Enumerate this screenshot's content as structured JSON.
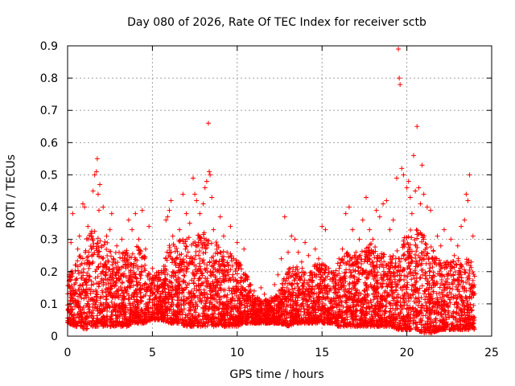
{
  "chart_data": {
    "type": "scatter",
    "title": "Day 080 of 2026, Rate Of TEC Index for receiver sctb",
    "xlabel": "GPS time / hours",
    "ylabel": "ROTI / TECUs",
    "xlim": [
      0,
      25
    ],
    "ylim": [
      0,
      0.9
    ],
    "x_ticks": [
      0,
      5,
      10,
      15,
      20,
      25
    ],
    "x_tick_labels": [
      "0",
      "5",
      "10",
      "15",
      "20",
      "25"
    ],
    "y_ticks": [
      0,
      0.1,
      0.2,
      0.3,
      0.4,
      0.5,
      0.6,
      0.7,
      0.8,
      0.9
    ],
    "y_tick_labels": [
      "0",
      "0.1",
      "0.2",
      "0.3",
      "0.4",
      "0.5",
      "0.6",
      "0.7",
      "0.8",
      "0.9"
    ],
    "grid": true,
    "marker": "+",
    "marker_color": "#ff0000",
    "series": [
      {
        "name": "ROTI",
        "color": "#ff0000",
        "points": [
          [
            0.05,
            0.08
          ],
          [
            0.1,
            0.19
          ],
          [
            0.2,
            0.29
          ],
          [
            0.3,
            0.38
          ],
          [
            0.4,
            0.13
          ],
          [
            0.5,
            0.22
          ],
          [
            0.6,
            0.27
          ],
          [
            0.7,
            0.31
          ],
          [
            0.8,
            0.18
          ],
          [
            0.9,
            0.41
          ],
          [
            1.0,
            0.4
          ],
          [
            1.1,
            0.12
          ],
          [
            1.2,
            0.34
          ],
          [
            1.3,
            0.09
          ],
          [
            1.4,
            0.27
          ],
          [
            1.5,
            0.45
          ],
          [
            1.6,
            0.5
          ],
          [
            1.7,
            0.51
          ],
          [
            1.75,
            0.55
          ],
          [
            1.8,
            0.44
          ],
          [
            1.85,
            0.39
          ],
          [
            1.9,
            0.47
          ],
          [
            2.0,
            0.28
          ],
          [
            2.1,
            0.4
          ],
          [
            2.2,
            0.22
          ],
          [
            2.3,
            0.31
          ],
          [
            2.4,
            0.15
          ],
          [
            2.5,
            0.33
          ],
          [
            2.6,
            0.38
          ],
          [
            2.7,
            0.24
          ],
          [
            2.8,
            0.19
          ],
          [
            2.9,
            0.28
          ],
          [
            3.0,
            0.13
          ],
          [
            3.2,
            0.3
          ],
          [
            3.4,
            0.25
          ],
          [
            3.6,
            0.36
          ],
          [
            3.8,
            0.33
          ],
          [
            4.0,
            0.38
          ],
          [
            4.2,
            0.3
          ],
          [
            4.4,
            0.39
          ],
          [
            4.6,
            0.27
          ],
          [
            4.8,
            0.34
          ],
          [
            5.0,
            0.21
          ],
          [
            5.2,
            0.12
          ],
          [
            5.4,
            0.19
          ],
          [
            5.6,
            0.16
          ],
          [
            5.8,
            0.36
          ],
          [
            5.9,
            0.37
          ],
          [
            6.0,
            0.39
          ],
          [
            6.1,
            0.42
          ],
          [
            6.2,
            0.31
          ],
          [
            6.4,
            0.24
          ],
          [
            6.6,
            0.33
          ],
          [
            6.8,
            0.44
          ],
          [
            7.0,
            0.38
          ],
          [
            7.2,
            0.35
          ],
          [
            7.4,
            0.49
          ],
          [
            7.5,
            0.44
          ],
          [
            7.6,
            0.42
          ],
          [
            7.8,
            0.38
          ],
          [
            8.0,
            0.41
          ],
          [
            8.1,
            0.46
          ],
          [
            8.2,
            0.48
          ],
          [
            8.3,
            0.66
          ],
          [
            8.35,
            0.51
          ],
          [
            8.4,
            0.5
          ],
          [
            8.5,
            0.43
          ],
          [
            8.6,
            0.33
          ],
          [
            8.8,
            0.28
          ],
          [
            9.0,
            0.37
          ],
          [
            9.2,
            0.31
          ],
          [
            9.4,
            0.26
          ],
          [
            9.6,
            0.34
          ],
          [
            9.8,
            0.24
          ],
          [
            10.0,
            0.29
          ],
          [
            10.2,
            0.22
          ],
          [
            10.4,
            0.27
          ],
          [
            10.6,
            0.18
          ],
          [
            10.8,
            0.16
          ],
          [
            11.0,
            0.14
          ],
          [
            11.2,
            0.12
          ],
          [
            11.4,
            0.15
          ],
          [
            11.6,
            0.13
          ],
          [
            11.8,
            0.11
          ],
          [
            12.0,
            0.12
          ],
          [
            12.2,
            0.16
          ],
          [
            12.4,
            0.19
          ],
          [
            12.6,
            0.24
          ],
          [
            12.8,
            0.37
          ],
          [
            13.0,
            0.26
          ],
          [
            13.2,
            0.31
          ],
          [
            13.4,
            0.3
          ],
          [
            13.6,
            0.26
          ],
          [
            13.8,
            0.23
          ],
          [
            14.0,
            0.29
          ],
          [
            14.2,
            0.25
          ],
          [
            14.4,
            0.19
          ],
          [
            14.6,
            0.27
          ],
          [
            14.8,
            0.24
          ],
          [
            15.0,
            0.34
          ],
          [
            15.2,
            0.33
          ],
          [
            15.4,
            0.21
          ],
          [
            15.6,
            0.17
          ],
          [
            15.8,
            0.19
          ],
          [
            16.0,
            0.24
          ],
          [
            16.2,
            0.27
          ],
          [
            16.4,
            0.38
          ],
          [
            16.6,
            0.4
          ],
          [
            16.8,
            0.33
          ],
          [
            17.0,
            0.26
          ],
          [
            17.2,
            0.3
          ],
          [
            17.4,
            0.36
          ],
          [
            17.6,
            0.43
          ],
          [
            17.8,
            0.33
          ],
          [
            18.0,
            0.3
          ],
          [
            18.2,
            0.39
          ],
          [
            18.4,
            0.37
          ],
          [
            18.6,
            0.41
          ],
          [
            18.8,
            0.42
          ],
          [
            19.0,
            0.33
          ],
          [
            19.2,
            0.36
          ],
          [
            19.4,
            0.49
          ],
          [
            19.5,
            0.89
          ],
          [
            19.55,
            0.8
          ],
          [
            19.6,
            0.78
          ],
          [
            19.7,
            0.52
          ],
          [
            19.8,
            0.5
          ],
          [
            20.0,
            0.46
          ],
          [
            20.1,
            0.48
          ],
          [
            20.2,
            0.43
          ],
          [
            20.3,
            0.38
          ],
          [
            20.4,
            0.56
          ],
          [
            20.5,
            0.45
          ],
          [
            20.6,
            0.65
          ],
          [
            20.7,
            0.46
          ],
          [
            20.8,
            0.41
          ],
          [
            20.9,
            0.53
          ],
          [
            21.0,
            0.44
          ],
          [
            21.2,
            0.4
          ],
          [
            21.4,
            0.39
          ],
          [
            21.6,
            0.23
          ],
          [
            21.8,
            0.31
          ],
          [
            22.0,
            0.28
          ],
          [
            22.2,
            0.33
          ],
          [
            22.4,
            0.23
          ],
          [
            22.6,
            0.3
          ],
          [
            22.8,
            0.25
          ],
          [
            23.0,
            0.28
          ],
          [
            23.2,
            0.34
          ],
          [
            23.4,
            0.36
          ],
          [
            23.5,
            0.44
          ],
          [
            23.6,
            0.42
          ],
          [
            23.7,
            0.5
          ],
          [
            23.8,
            0.23
          ],
          [
            23.9,
            0.31
          ]
        ],
        "density_envelope": {
          "x": [
            0,
            0.5,
            1,
            1.5,
            2,
            2.5,
            3,
            3.5,
            4,
            4.5,
            5,
            5.5,
            6,
            6.5,
            7,
            7.5,
            8,
            8.5,
            9,
            9.5,
            10,
            10.5,
            11,
            11.5,
            12,
            12.5,
            13,
            13.5,
            14,
            14.5,
            15,
            15.5,
            16,
            16.5,
            17,
            17.5,
            18,
            18.5,
            19,
            19.5,
            20,
            20.5,
            21,
            21.5,
            22,
            22.5,
            23,
            23.5,
            24
          ],
          "low": [
            0.04,
            0.03,
            0.02,
            0.03,
            0.03,
            0.03,
            0.03,
            0.03,
            0.04,
            0.04,
            0.05,
            0.05,
            0.04,
            0.04,
            0.03,
            0.03,
            0.03,
            0.03,
            0.03,
            0.03,
            0.03,
            0.04,
            0.04,
            0.04,
            0.04,
            0.04,
            0.03,
            0.04,
            0.04,
            0.04,
            0.04,
            0.04,
            0.03,
            0.03,
            0.03,
            0.03,
            0.03,
            0.03,
            0.03,
            0.02,
            0.02,
            0.02,
            0.01,
            0.01,
            0.02,
            0.02,
            0.02,
            0.02,
            0.02
          ],
          "high": [
            0.18,
            0.22,
            0.28,
            0.32,
            0.3,
            0.27,
            0.25,
            0.26,
            0.27,
            0.26,
            0.18,
            0.2,
            0.27,
            0.28,
            0.3,
            0.3,
            0.31,
            0.3,
            0.27,
            0.25,
            0.23,
            0.19,
            0.12,
            0.11,
            0.11,
            0.14,
            0.2,
            0.21,
            0.2,
            0.21,
            0.23,
            0.2,
            0.22,
            0.25,
            0.24,
            0.27,
            0.28,
            0.25,
            0.24,
            0.26,
            0.31,
            0.33,
            0.3,
            0.26,
            0.22,
            0.22,
            0.23,
            0.24,
            0.2
          ]
        }
      }
    ]
  }
}
